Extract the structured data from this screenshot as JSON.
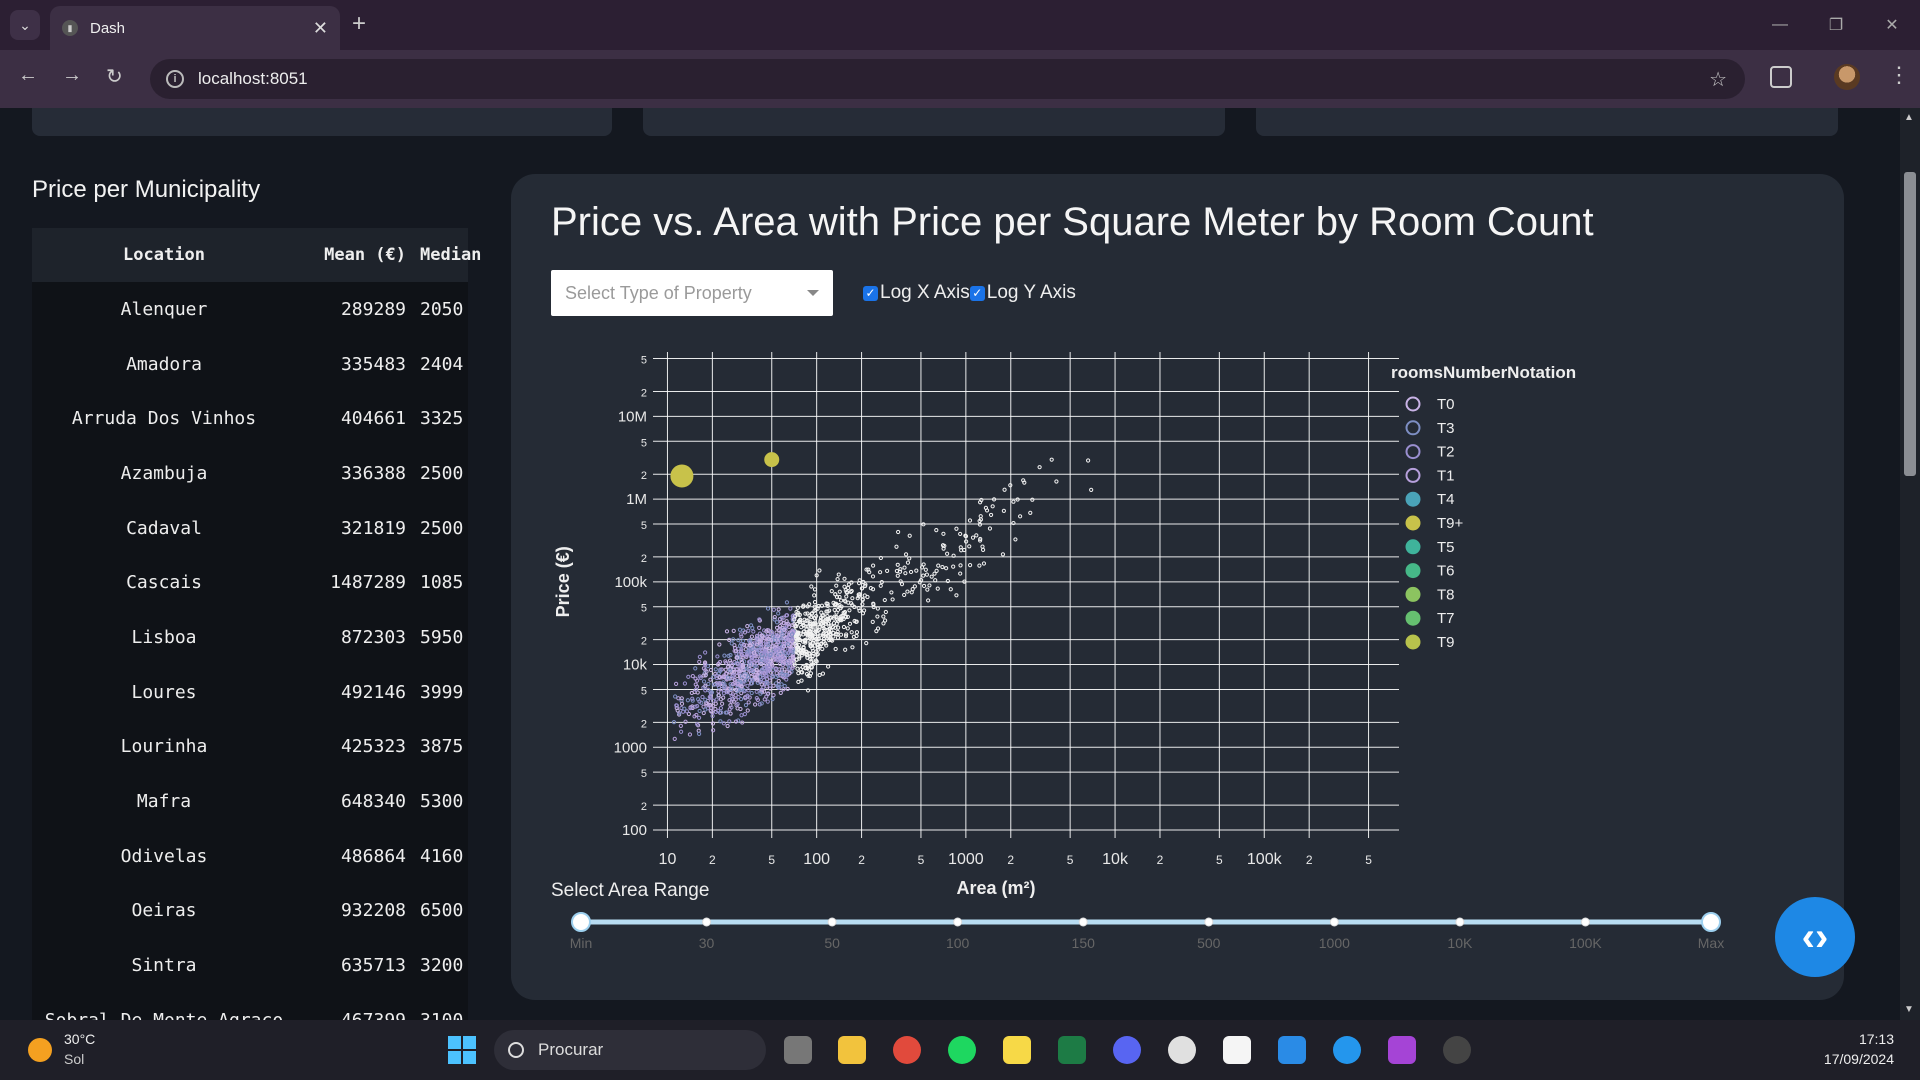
{
  "browser": {
    "tab_title": "Dash",
    "url": "localhost:8051"
  },
  "sidebar": {
    "title": "Price per Municipality",
    "headers": {
      "location": "Location",
      "mean": "Mean (€)",
      "median": "Median"
    },
    "rows": [
      {
        "location": "Alenquer",
        "mean": "289289",
        "median": "2050"
      },
      {
        "location": "Amadora",
        "mean": "335483",
        "median": "2404"
      },
      {
        "location": "Arruda Dos Vinhos",
        "mean": "404661",
        "median": "3325"
      },
      {
        "location": "Azambuja",
        "mean": "336388",
        "median": "2500"
      },
      {
        "location": "Cadaval",
        "mean": "321819",
        "median": "2500"
      },
      {
        "location": "Cascais",
        "mean": "1487289",
        "median": "1085"
      },
      {
        "location": "Lisboa",
        "mean": "872303",
        "median": "5950"
      },
      {
        "location": "Loures",
        "mean": "492146",
        "median": "3999"
      },
      {
        "location": "Lourinha",
        "mean": "425323",
        "median": "3875"
      },
      {
        "location": "Mafra",
        "mean": "648340",
        "median": "5300"
      },
      {
        "location": "Odivelas",
        "mean": "486864",
        "median": "4160"
      },
      {
        "location": "Oeiras",
        "mean": "932208",
        "median": "6500"
      },
      {
        "location": "Sintra",
        "mean": "635713",
        "median": "3200"
      },
      {
        "location": "Sobral De Monte Agraco",
        "mean": "467399",
        "median": "3100"
      }
    ]
  },
  "main": {
    "title": "Price vs. Area with Price per Square Meter by Room Count",
    "dropdown_placeholder": "Select Type of Property",
    "log_x_label": "Log X Axis",
    "log_y_label": "Log Y Axis",
    "slider_label": "Select Area Range",
    "slider_marks": [
      "Min",
      "30",
      "50",
      "100",
      "150",
      "500",
      "1000",
      "10K",
      "100K",
      "Max"
    ]
  },
  "chart_data": {
    "type": "scatter",
    "xlabel": "Area (m²)",
    "ylabel": "Price (€)",
    "x_scale": "log",
    "y_scale": "log",
    "xlim": [
      8,
      800000
    ],
    "ylim": [
      80,
      60000000
    ],
    "x_tick_labels": [
      "10",
      "2",
      "5",
      "100",
      "2",
      "5",
      "1000",
      "2",
      "5",
      "10k",
      "2",
      "5",
      "100k",
      "2",
      "5"
    ],
    "y_tick_labels": [
      "100",
      "2",
      "5",
      "1000",
      "2",
      "5",
      "10k",
      "2",
      "5",
      "100k",
      "2",
      "5",
      "1M",
      "2",
      "5",
      "10M",
      "2",
      "5"
    ],
    "legend_title": "roomsNumberNotation",
    "legend_placement": "right",
    "series": [
      {
        "name": "T0",
        "color": "#c9b3e6"
      },
      {
        "name": "T3",
        "color": "#7e8fc4"
      },
      {
        "name": "T2",
        "color": "#9a8fd0"
      },
      {
        "name": "T1",
        "color": "#b7a0dc"
      },
      {
        "name": "T4",
        "color": "#4aa3b8"
      },
      {
        "name": "T9+",
        "color": "#c8c24a"
      },
      {
        "name": "T5",
        "color": "#3fb39b"
      },
      {
        "name": "T6",
        "color": "#46b888"
      },
      {
        "name": "T8",
        "color": "#8cc460"
      },
      {
        "name": "T7",
        "color": "#66c070"
      },
      {
        "name": "T9",
        "color": "#b8c24c"
      }
    ],
    "grid": true
  },
  "taskbar": {
    "temp": "30°C",
    "weather": "Sol",
    "search_placeholder": "Procurar",
    "time": "17:13",
    "date": "17/09/2024"
  }
}
